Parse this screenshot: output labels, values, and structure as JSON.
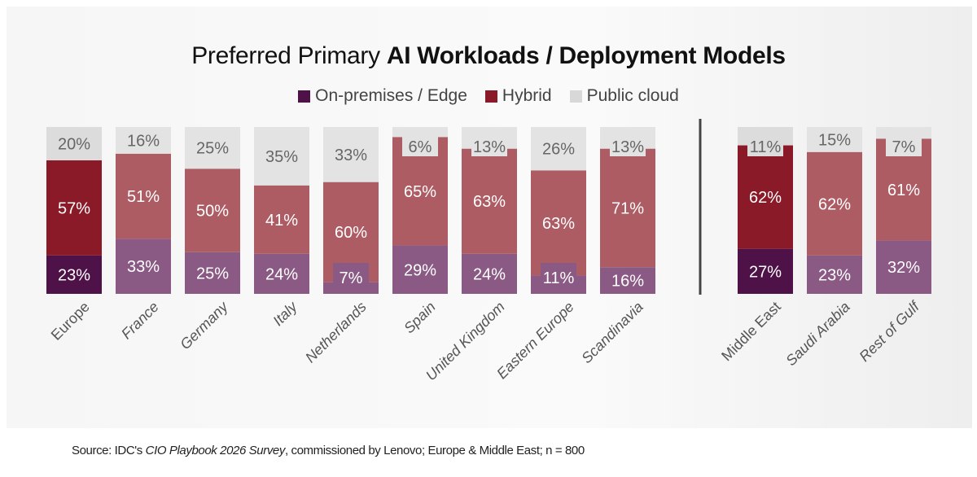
{
  "chart_data": {
    "type": "bar",
    "stacked": true,
    "title_regular": "Preferred Primary ",
    "title_bold": "AI Workloads / Deployment Models",
    "categories": [
      "Europe",
      "France",
      "Germany",
      "Italy",
      "Netherlands",
      "Spain",
      "United Kingdom",
      "Eastern Europe",
      "Scandinavia",
      "Middle East",
      "Saudi Arabia",
      "Rest of Gulf"
    ],
    "groups": [
      {
        "name": "Europe",
        "categories": [
          "Europe",
          "France",
          "Germany",
          "Italy",
          "Netherlands",
          "Spain",
          "United Kingdom",
          "Eastern Europe",
          "Scandinavia"
        ]
      },
      {
        "name": "Middle East",
        "categories": [
          "Middle East",
          "Saudi Arabia",
          "Rest of Gulf"
        ]
      }
    ],
    "aggregate_categories": [
      "Europe",
      "Middle East"
    ],
    "series": [
      {
        "name": "On-premises / Edge",
        "values": [
          23,
          33,
          25,
          24,
          7,
          29,
          24,
          11,
          16,
          27,
          23,
          32
        ],
        "labels": [
          "23%",
          "33%",
          "25%",
          "24%",
          "7%",
          "29%",
          "24%",
          "11%",
          "16%",
          "27%",
          "23%",
          "32%"
        ]
      },
      {
        "name": "Hybrid",
        "values": [
          57,
          51,
          50,
          41,
          60,
          65,
          63,
          63,
          71,
          62,
          62,
          61
        ],
        "labels": [
          "57%",
          "51%",
          "50%",
          "41%",
          "60%",
          "65%",
          "63%",
          "63%",
          "71%",
          "62%",
          "62%",
          "61%"
        ]
      },
      {
        "name": "Public cloud",
        "values": [
          20,
          16,
          25,
          35,
          33,
          6,
          13,
          26,
          13,
          11,
          15,
          7
        ],
        "labels": [
          "20%",
          "16%",
          "25%",
          "35%",
          "33%",
          "6%",
          "13%",
          "26%",
          "13%",
          "11%",
          "15%",
          "7%"
        ]
      }
    ],
    "ylim": [
      0,
      100
    ],
    "xlabel": "",
    "ylabel": "",
    "grid": false,
    "legend_position": "top-center",
    "colors": {
      "on_prem_aggregate": "#4f1248",
      "hybrid_aggregate": "#8b1a28",
      "public_aggregate": "#dcdcdc",
      "on_prem": "#8a5a85",
      "hybrid": "#ae5c64",
      "public": "#e3e3e3"
    }
  },
  "legend": [
    {
      "label": "On-premises / Edge",
      "color": "#4f1248"
    },
    {
      "label": "Hybrid",
      "color": "#8b1a28"
    },
    {
      "label": "Public cloud",
      "color": "#d8d8d8"
    }
  ],
  "source": {
    "prefix": "Source: IDC's ",
    "italic": "CIO Playbook 2026 Survey",
    "suffix": ", commissioned by Lenovo; Europe & Middle East; n = 800"
  }
}
